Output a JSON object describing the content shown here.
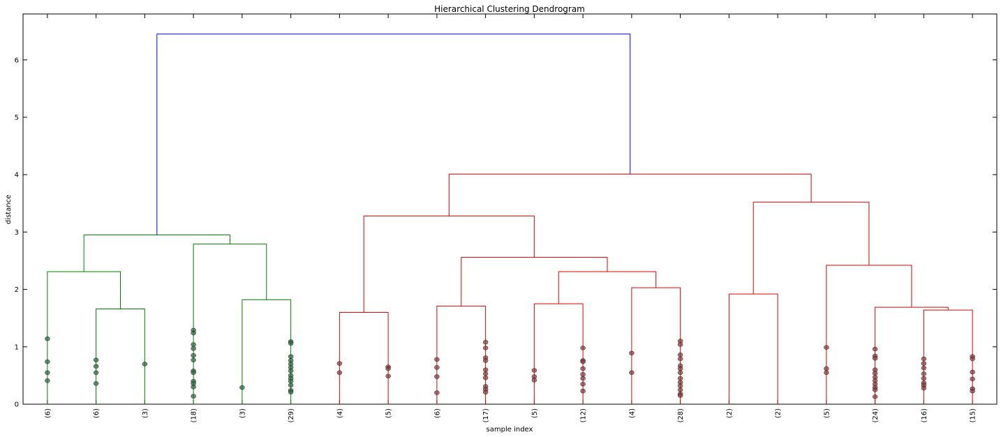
{
  "chart_data": {
    "type": "dendrogram",
    "title": "Hierarchical Clustering Dendrogram",
    "xlabel": "sample index",
    "ylabel": "distance",
    "xlim": [
      0,
      200
    ],
    "ylim": [
      0,
      6.8
    ],
    "yticks": [
      0,
      1,
      2,
      3,
      4,
      5,
      6
    ],
    "xticks": [
      {
        "value": 5,
        "label": "(6)"
      },
      {
        "value": 15,
        "label": "(6)"
      },
      {
        "value": 25,
        "label": "(3)"
      },
      {
        "value": 35,
        "label": "(18)"
      },
      {
        "value": 45,
        "label": "(3)"
      },
      {
        "value": 55,
        "label": "(29)"
      },
      {
        "value": 65,
        "label": "(4)"
      },
      {
        "value": 75,
        "label": "(5)"
      },
      {
        "value": 85,
        "label": "(6)"
      },
      {
        "value": 95,
        "label": "(17)"
      },
      {
        "value": 105,
        "label": "(5)"
      },
      {
        "value": 115,
        "label": "(12)"
      },
      {
        "value": 125,
        "label": "(4)"
      },
      {
        "value": 135,
        "label": "(28)"
      },
      {
        "value": 145,
        "label": "(2)"
      },
      {
        "value": 155,
        "label": "(2)"
      },
      {
        "value": 165,
        "label": "(5)"
      },
      {
        "value": 175,
        "label": "(24)"
      },
      {
        "value": 185,
        "label": "(16)"
      },
      {
        "value": 195,
        "label": "(15)"
      }
    ],
    "links": [
      {
        "color": "#008000",
        "x": [
          15,
          15,
          25,
          25
        ],
        "y": [
          0,
          1.66,
          1.66,
          0
        ]
      },
      {
        "color": "#008000",
        "x": [
          5,
          5,
          20,
          20
        ],
        "y": [
          0,
          2.31,
          2.31,
          1.66
        ]
      },
      {
        "color": "#008000",
        "x": [
          45,
          45,
          55,
          55
        ],
        "y": [
          0,
          1.82,
          1.82,
          0
        ]
      },
      {
        "color": "#008000",
        "x": [
          35,
          35,
          50,
          50
        ],
        "y": [
          0,
          2.79,
          2.79,
          1.82
        ]
      },
      {
        "color": "#008000",
        "x": [
          12.5,
          12.5,
          42.5,
          42.5
        ],
        "y": [
          2.31,
          2.95,
          2.95,
          2.79
        ]
      },
      {
        "color": "#e00000",
        "x": [
          65,
          65,
          75,
          75
        ],
        "y": [
          0,
          1.6,
          1.6,
          0
        ]
      },
      {
        "color": "#e00000",
        "x": [
          85,
          85,
          95,
          95
        ],
        "y": [
          0,
          1.71,
          1.71,
          0
        ]
      },
      {
        "color": "#e00000",
        "x": [
          105,
          105,
          115,
          115
        ],
        "y": [
          0,
          1.75,
          1.75,
          0
        ]
      },
      {
        "color": "#e00000",
        "x": [
          125,
          125,
          135,
          135
        ],
        "y": [
          0,
          2.03,
          2.03,
          0
        ]
      },
      {
        "color": "#e00000",
        "x": [
          110,
          110,
          130,
          130
        ],
        "y": [
          1.75,
          2.31,
          2.31,
          2.03
        ]
      },
      {
        "color": "#e00000",
        "x": [
          90,
          90,
          120,
          120
        ],
        "y": [
          1.71,
          2.56,
          2.56,
          2.31
        ]
      },
      {
        "color": "#e00000",
        "x": [
          70,
          70,
          105,
          105
        ],
        "y": [
          1.6,
          3.28,
          3.28,
          2.56
        ]
      },
      {
        "color": "#e00000",
        "x": [
          145,
          145,
          155,
          155
        ],
        "y": [
          0,
          1.92,
          1.92,
          0
        ]
      },
      {
        "color": "#e00000",
        "x": [
          185,
          185,
          195,
          195
        ],
        "y": [
          0,
          1.64,
          1.64,
          0
        ]
      },
      {
        "color": "#e00000",
        "x": [
          175,
          175,
          190,
          190
        ],
        "y": [
          0,
          1.69,
          1.69,
          1.64
        ]
      },
      {
        "color": "#e00000",
        "x": [
          165,
          165,
          182.5,
          182.5
        ],
        "y": [
          0,
          2.42,
          2.42,
          1.69
        ]
      },
      {
        "color": "#e00000",
        "x": [
          150,
          150,
          173.75,
          173.75
        ],
        "y": [
          1.92,
          3.52,
          3.52,
          2.42
        ]
      },
      {
        "color": "#e00000",
        "x": [
          87.5,
          87.5,
          161.875,
          161.875
        ],
        "y": [
          3.28,
          4.01,
          4.01,
          3.52
        ]
      },
      {
        "color": "#0000ff",
        "x": [
          27.5,
          27.5,
          124.6875,
          124.6875
        ],
        "y": [
          2.95,
          6.45,
          6.45,
          4.01
        ]
      }
    ],
    "points": [
      {
        "color": "#2f6b3f",
        "x": [
          5,
          5,
          5,
          5,
          15,
          15,
          15,
          15,
          25,
          35,
          35,
          35,
          35,
          35,
          35,
          35,
          35,
          35,
          35,
          35,
          35,
          45,
          55,
          55,
          55,
          55,
          55,
          55,
          55,
          55,
          55,
          55,
          55,
          55,
          55
        ],
        "values": [
          1.14,
          0.74,
          0.55,
          0.41,
          0.77,
          0.66,
          0.55,
          0.36,
          0.7,
          1.29,
          1.24,
          1.04,
          0.97,
          0.85,
          0.77,
          0.58,
          0.55,
          0.4,
          0.36,
          0.3,
          0.14,
          0.29,
          1.09,
          1.06,
          0.83,
          0.76,
          0.7,
          0.64,
          0.58,
          0.5,
          0.45,
          0.4,
          0.33,
          0.24,
          0.21
        ]
      },
      {
        "color": "#8a3f3f",
        "x": [
          65,
          65,
          75,
          75,
          75,
          85,
          85,
          85,
          85,
          95,
          95,
          95,
          95,
          95,
          95,
          95,
          95,
          95,
          95,
          105,
          105,
          105,
          115,
          115,
          115,
          115,
          115,
          115,
          115,
          115,
          125,
          125,
          135,
          135,
          135,
          135,
          135,
          135,
          135,
          135,
          135,
          135,
          135,
          135,
          135,
          165,
          165,
          165,
          175,
          175,
          175,
          175,
          175,
          175,
          175,
          175,
          175,
          175,
          175,
          185,
          185,
          185,
          185,
          185,
          185,
          185,
          185,
          195,
          195,
          195,
          195,
          195,
          195
        ],
        "values": [
          0.71,
          0.55,
          0.65,
          0.62,
          0.49,
          0.78,
          0.64,
          0.48,
          0.2,
          1.08,
          0.98,
          0.81,
          0.76,
          0.6,
          0.53,
          0.46,
          0.31,
          0.26,
          0.21,
          0.59,
          0.48,
          0.42,
          0.98,
          0.76,
          0.74,
          0.62,
          0.52,
          0.45,
          0.35,
          0.23,
          0.89,
          0.55,
          1.1,
          1.04,
          0.86,
          0.79,
          0.67,
          0.62,
          0.55,
          0.45,
          0.38,
          0.32,
          0.25,
          0.18,
          0.15,
          0.99,
          0.62,
          0.55,
          0.96,
          0.84,
          0.8,
          0.6,
          0.54,
          0.47,
          0.41,
          0.35,
          0.29,
          0.25,
          0.13,
          0.79,
          0.71,
          0.63,
          0.53,
          0.45,
          0.37,
          0.33,
          0.28,
          0.83,
          0.79,
          0.56,
          0.44,
          0.27,
          0.23
        ]
      }
    ]
  }
}
